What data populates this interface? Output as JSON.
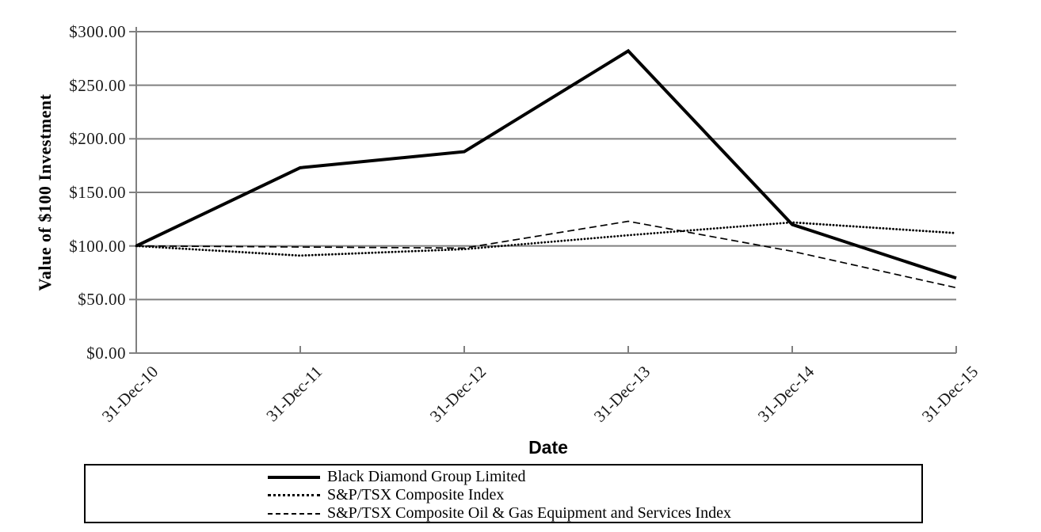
{
  "chart_data": {
    "type": "line",
    "title": "",
    "xlabel": "Date",
    "ylabel": "Value of $100 Investment",
    "x_categories": [
      "31-Dec-10",
      "31-Dec-11",
      "31-Dec-12",
      "31-Dec-13",
      "31-Dec-14",
      "31-Dec-15"
    ],
    "y_tick_labels": [
      "$0.00",
      "$50.00",
      "$100.00",
      "$150.00",
      "$200.00",
      "$250.00",
      "$300.00"
    ],
    "ylim": [
      0,
      300
    ],
    "y_tick_step": 50,
    "grid": "horizontal",
    "legend_position": "bottom-boxed",
    "series": [
      {
        "name": "Black Diamond Group Limited",
        "style": "solid",
        "values": [
          100,
          173,
          188,
          282,
          120,
          70
        ]
      },
      {
        "name": "S&P/TSX Composite Index",
        "style": "dotted",
        "values": [
          100,
          91,
          97,
          110,
          122,
          112
        ]
      },
      {
        "name": "S&P/TSX Composite Oil & Gas Equipment and Services Index",
        "style": "dashed",
        "values": [
          100,
          99,
          98,
          123,
          95,
          61
        ]
      }
    ],
    "colors": {
      "series": "#000000",
      "grid": "#808080",
      "axis": "#808080",
      "text": "#1a1a1a"
    }
  }
}
